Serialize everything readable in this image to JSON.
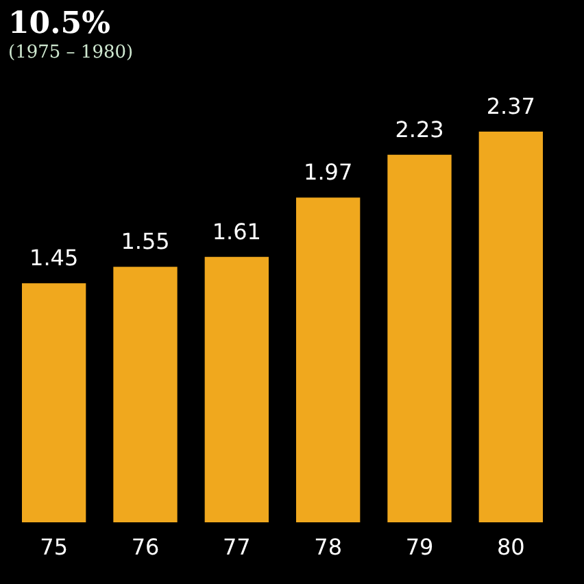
{
  "chart_data": {
    "type": "bar",
    "title": "10.5%",
    "subtitle": "(1975 – 1980)",
    "categories": [
      "75",
      "76",
      "77",
      "78",
      "79",
      "80"
    ],
    "values": [
      1.45,
      1.55,
      1.61,
      1.97,
      2.23,
      2.37
    ],
    "color": "#f0a81e",
    "data_labels": true
  }
}
